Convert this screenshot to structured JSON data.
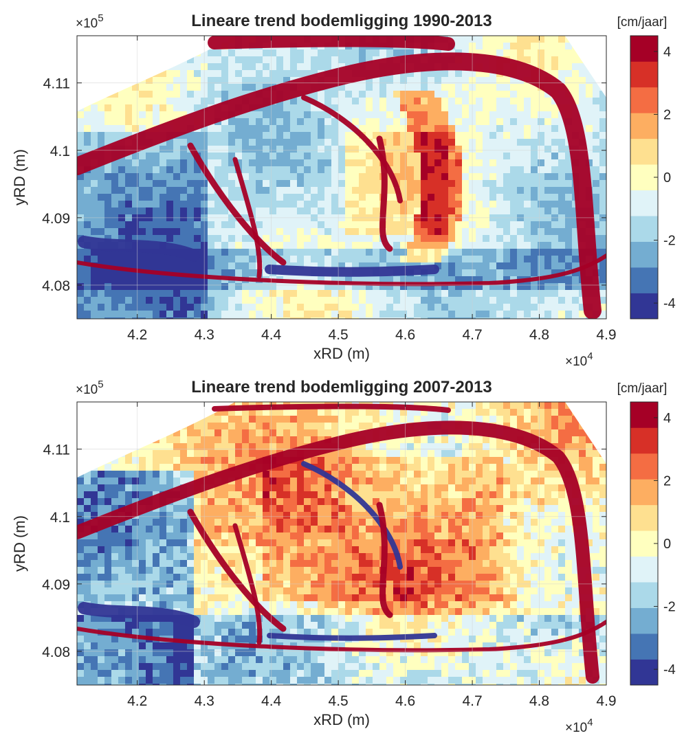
{
  "chart_data": [
    {
      "type": "heatmap",
      "title": "Lineare trend bodemligging 1990-2013",
      "xlabel": "xRD (m)",
      "ylabel": "yRD (m)",
      "x_exponent_label": "×10",
      "x_exponent_power": "4",
      "y_exponent_label": "×10",
      "y_exponent_power": "5",
      "xlim": [
        4.11,
        4.9
      ],
      "ylim": [
        4.075,
        4.117
      ],
      "x_ticks": [
        4.2,
        4.3,
        4.4,
        4.5,
        4.6,
        4.7,
        4.8,
        4.9
      ],
      "x_tick_labels": [
        "4.2",
        "4.3",
        "4.4",
        "4.5",
        "4.6",
        "4.7",
        "4.8",
        "4.9"
      ],
      "y_ticks": [
        4.08,
        4.09,
        4.1,
        4.11
      ],
      "y_tick_labels": [
        "4.08",
        "4.09",
        "4.1",
        "4.11"
      ],
      "grid": true,
      "colorbar": {
        "label": "[cm/jaar]",
        "range": [
          -4.5,
          4.5
        ],
        "ticks": [
          4,
          2,
          0,
          -2,
          -4
        ],
        "tick_labels": [
          "4",
          "2",
          "0",
          "-2",
          "-4"
        ],
        "colors": [
          "#313695",
          "#4575b4",
          "#74add1",
          "#abd9e9",
          "#e0f3f8",
          "#ffffbf",
          "#fee090",
          "#fdae61",
          "#f46d43",
          "#d73027",
          "#a50026"
        ]
      }
    },
    {
      "type": "heatmap",
      "title": "Lineare trend bodemligging 2007-2013",
      "xlabel": "xRD (m)",
      "ylabel": "yRD (m)",
      "x_exponent_label": "×10",
      "x_exponent_power": "4",
      "y_exponent_label": "×10",
      "y_exponent_power": "5",
      "xlim": [
        4.11,
        4.9
      ],
      "ylim": [
        4.075,
        4.117
      ],
      "x_ticks": [
        4.2,
        4.3,
        4.4,
        4.5,
        4.6,
        4.7,
        4.8,
        4.9
      ],
      "x_tick_labels": [
        "4.2",
        "4.3",
        "4.4",
        "4.5",
        "4.6",
        "4.7",
        "4.8",
        "4.9"
      ],
      "y_ticks": [
        4.08,
        4.09,
        4.1,
        4.11
      ],
      "y_tick_labels": [
        "4.08",
        "4.09",
        "4.1",
        "4.11"
      ],
      "grid": true,
      "colorbar": {
        "label": "[cm/jaar]",
        "range": [
          -4.5,
          4.5
        ],
        "ticks": [
          4,
          2,
          0,
          -2,
          -4
        ],
        "tick_labels": [
          "4",
          "2",
          "0",
          "-2",
          "-4"
        ],
        "colors": [
          "#313695",
          "#4575b4",
          "#74add1",
          "#abd9e9",
          "#e0f3f8",
          "#ffffbf",
          "#fee090",
          "#fdae61",
          "#f46d43",
          "#d73027",
          "#a50026"
        ]
      }
    }
  ]
}
